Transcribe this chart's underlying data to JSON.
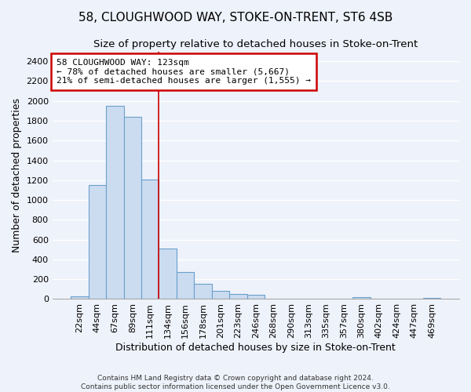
{
  "title": "58, CLOUGHWOOD WAY, STOKE-ON-TRENT, ST6 4SB",
  "subtitle": "Size of property relative to detached houses in Stoke-on-Trent",
  "xlabel": "Distribution of detached houses by size in Stoke-on-Trent",
  "ylabel": "Number of detached properties",
  "footer_line1": "Contains HM Land Registry data © Crown copyright and database right 2024.",
  "footer_line2": "Contains public sector information licensed under the Open Government Licence v3.0.",
  "bar_labels": [
    "22sqm",
    "44sqm",
    "67sqm",
    "89sqm",
    "111sqm",
    "134sqm",
    "156sqm",
    "178sqm",
    "201sqm",
    "223sqm",
    "246sqm",
    "268sqm",
    "290sqm",
    "313sqm",
    "335sqm",
    "357sqm",
    "380sqm",
    "402sqm",
    "424sqm",
    "447sqm",
    "469sqm"
  ],
  "bar_values": [
    30,
    1150,
    1950,
    1840,
    1210,
    510,
    270,
    155,
    80,
    48,
    42,
    5,
    5,
    5,
    5,
    0,
    18,
    0,
    0,
    0,
    15
  ],
  "bar_color": "#ccdcf0",
  "bar_edge_color": "#6aa0cc",
  "property_line_index": 4,
  "annotation_line1": "58 CLOUGHWOOD WAY: 123sqm",
  "annotation_line2": "← 78% of detached houses are smaller (5,667)",
  "annotation_line3": "21% of semi-detached houses are larger (1,555) →",
  "annotation_box_color": "#ffffff",
  "annotation_box_edge_color": "#cc0000",
  "vline_color": "#cc0000",
  "ylim": [
    0,
    2500
  ],
  "yticks": [
    0,
    200,
    400,
    600,
    800,
    1000,
    1200,
    1400,
    1600,
    1800,
    2000,
    2200,
    2400
  ],
  "bg_color": "#eef2fa",
  "grid_color": "#ffffff",
  "title_fontsize": 11,
  "subtitle_fontsize": 9.5,
  "xlabel_fontsize": 9,
  "ylabel_fontsize": 9,
  "tick_fontsize": 8,
  "footer_fontsize": 6.5
}
